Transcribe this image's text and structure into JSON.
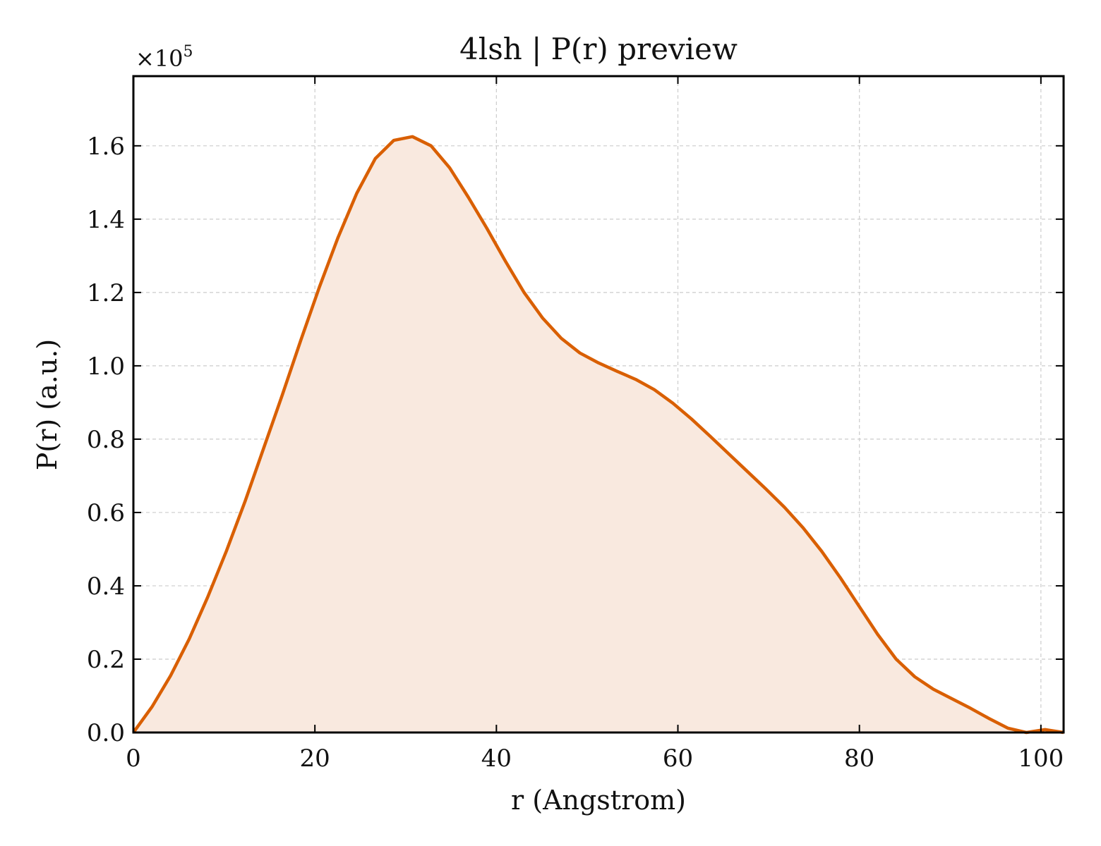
{
  "chart_data": {
    "type": "area",
    "title": "4lsh | P(r) preview",
    "xlabel": "r (Angstrom)",
    "ylabel": "P(r) (a.u.)",
    "y_multiplier": "×10",
    "y_multiplier_exponent": "5",
    "xlim": [
      0,
      102.5
    ],
    "ylim": [
      0,
      1.79
    ],
    "xticks": [
      0,
      20,
      40,
      60,
      80,
      100
    ],
    "xtick_labels": [
      "0",
      "20",
      "40",
      "60",
      "80",
      "100"
    ],
    "yticks": [
      0,
      0.2,
      0.4,
      0.6,
      0.8,
      1.0,
      1.2,
      1.4,
      1.6
    ],
    "ytick_labels": [
      "0.0",
      "0.2",
      "0.4",
      "0.6",
      "0.8",
      "1.0",
      "1.2",
      "1.4",
      "1.6"
    ],
    "grid": true,
    "line_color": "#d95f02",
    "fill_color": "#f9e9df",
    "series": [
      {
        "x": [
          0,
          2.05,
          4.1,
          6.15,
          8.2,
          10.25,
          12.3,
          14.35,
          16.4,
          18.45,
          20.5,
          22.55,
          24.6,
          26.65,
          28.7,
          30.75,
          32.8,
          34.85,
          36.9,
          38.95,
          41.0,
          43.05,
          45.1,
          47.15,
          49.2,
          51.25,
          53.3,
          55.35,
          57.4,
          59.45,
          61.5,
          63.55,
          65.6,
          67.65,
          69.7,
          71.75,
          73.8,
          75.85,
          77.9,
          79.95,
          82.0,
          84.05,
          86.1,
          88.15,
          90.2,
          92.25,
          94.3,
          96.35,
          98.4,
          100.45,
          102.5
        ],
        "y": [
          0.0,
          0.07,
          0.155,
          0.255,
          0.37,
          0.495,
          0.63,
          0.775,
          0.92,
          1.07,
          1.215,
          1.35,
          1.47,
          1.565,
          1.615,
          1.625,
          1.6,
          1.54,
          1.46,
          1.375,
          1.285,
          1.2,
          1.13,
          1.075,
          1.035,
          1.008,
          0.985,
          0.963,
          0.935,
          0.898,
          0.855,
          0.808,
          0.76,
          0.712,
          0.664,
          0.614,
          0.558,
          0.494,
          0.422,
          0.345,
          0.268,
          0.2,
          0.152,
          0.118,
          0.092,
          0.066,
          0.038,
          0.012,
          0.0,
          0.008,
          0.0
        ]
      }
    ]
  }
}
